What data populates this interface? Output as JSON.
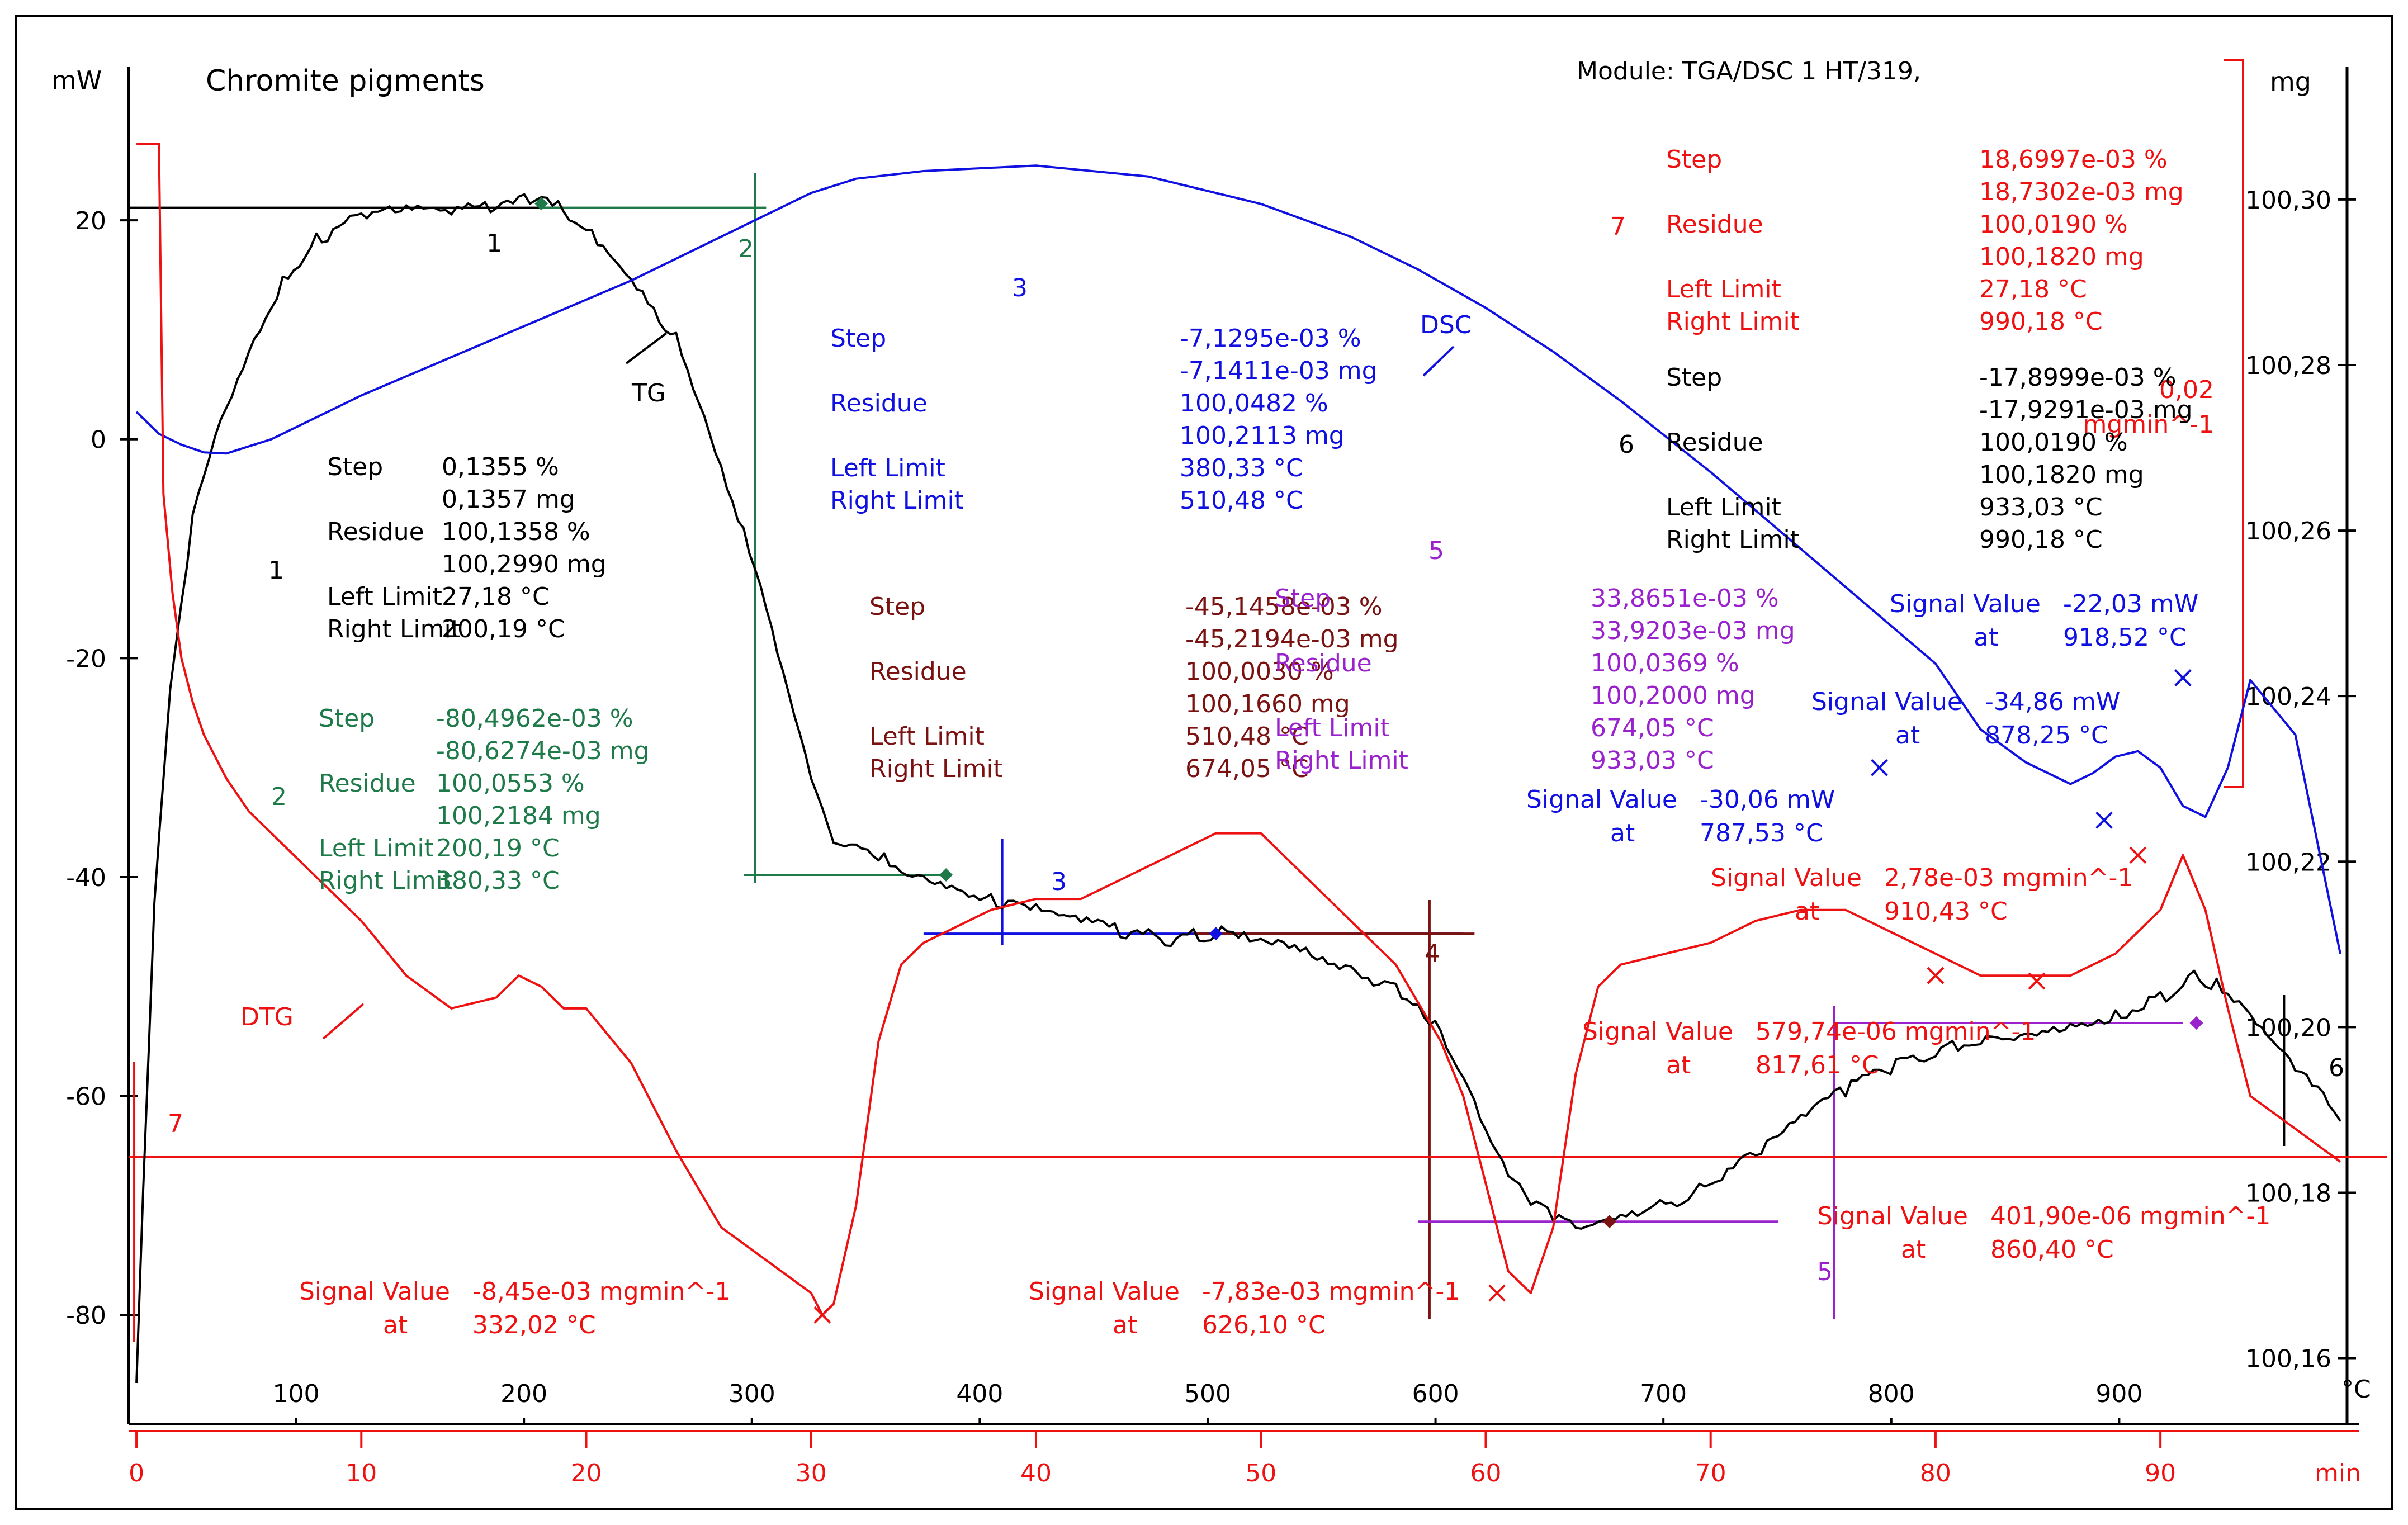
{
  "chart_data": {
    "type": "line",
    "title": "Chromite pigments",
    "module": "Module: TGA/DSC 1 HT/319,",
    "units": {
      "left": "mW",
      "right": "mg",
      "top_x": "°C",
      "bottom_x": "min"
    },
    "axes": {
      "mw_range": [
        -90,
        34
      ],
      "mg_range": [
        100.152,
        100.316
      ],
      "min_range": [
        -0.3,
        98.3
      ],
      "temp_range": [
        27,
        1000
      ],
      "mw_ticks": [
        "20",
        "0",
        "-20",
        "-40",
        "-60",
        "-80"
      ],
      "mw_tick_values": [
        20,
        0,
        -20,
        -40,
        -60,
        -80
      ],
      "mg_ticks": [
        "100,30",
        "100,28",
        "100,26",
        "100,24",
        "100,22",
        "100,20",
        "100,18",
        "100,16"
      ],
      "mg_tick_values": [
        100.3,
        100.28,
        100.26,
        100.24,
        100.22,
        100.2,
        100.18,
        100.16
      ],
      "temp_ticks": [
        "100",
        "200",
        "300",
        "400",
        "500",
        "600",
        "700",
        "800",
        "900"
      ],
      "temp_tick_values": [
        100,
        200,
        300,
        400,
        500,
        600,
        700,
        800,
        900
      ],
      "min_ticks": [
        "0",
        "10",
        "20",
        "30",
        "40",
        "50",
        "60",
        "70",
        "80",
        "90"
      ],
      "min_tick_values": [
        0,
        10,
        20,
        30,
        40,
        50,
        60,
        70,
        80,
        90
      ],
      "rate_scale_label": [
        "0,02",
        "mgmin^-1"
      ]
    },
    "colors": {
      "tg": "#000000",
      "dsc": "#1010e0",
      "dtg": "#ee1111",
      "step2": "#1f7a4a",
      "step3": "#1010e0",
      "step4": "#7a1212",
      "step5": "#9a22cc",
      "step6": "#000000",
      "step7": "#ee1111"
    },
    "series": [
      {
        "name": "TG",
        "axis": "mg",
        "color": "#000000",
        "x": [
          0,
          0.3,
          0.8,
          1.5,
          2.5,
          3.5,
          5,
          6.5,
          8,
          10,
          12,
          14,
          16,
          17.5,
          18.5,
          20,
          22,
          24,
          25,
          26,
          27,
          28,
          29,
          30,
          31,
          32,
          33,
          34,
          35,
          36,
          37,
          38,
          40,
          42,
          44,
          46,
          48,
          49,
          50,
          52,
          54,
          56,
          57,
          58,
          59,
          60,
          61,
          62,
          63,
          64,
          65,
          66,
          68,
          70,
          72,
          74,
          76,
          78,
          80,
          82,
          84,
          86,
          88,
          90,
          91.5,
          92.5,
          94,
          96,
          98
        ],
        "y": [
          100.157,
          100.18,
          100.215,
          100.24,
          100.262,
          100.272,
          100.282,
          100.29,
          100.295,
          100.298,
          100.2985,
          100.2985,
          100.299,
          100.3,
          100.2995,
          100.2965,
          100.291,
          100.283,
          100.276,
          100.268,
          100.26,
          100.25,
          100.24,
          100.23,
          100.222,
          100.2215,
          100.2205,
          100.2195,
          100.2185,
          100.2175,
          100.2165,
          100.2155,
          100.214,
          100.2125,
          100.2115,
          100.2105,
          100.2115,
          100.2112,
          100.2113,
          100.2095,
          100.207,
          100.2045,
          100.2025,
          100.199,
          100.1935,
          100.187,
          100.182,
          100.1785,
          100.1775,
          100.1765,
          100.1765,
          100.1775,
          100.1785,
          100.181,
          100.1845,
          100.1885,
          100.1925,
          100.195,
          100.197,
          100.1985,
          100.1995,
          100.2005,
          100.2015,
          100.2035,
          100.206,
          100.205,
          100.201,
          100.195,
          100.189
        ]
      },
      {
        "name": "DSC",
        "axis": "mW",
        "color": "#1010e0",
        "x": [
          0,
          1,
          2,
          3,
          4,
          6,
          8,
          10,
          14,
          18,
          22,
          25,
          28,
          30,
          32,
          35,
          40,
          45,
          50,
          54,
          57,
          60,
          63,
          66,
          70,
          74,
          78,
          80,
          82,
          84,
          86,
          87,
          88,
          89,
          90,
          91,
          92,
          93,
          94,
          96,
          98
        ],
        "y": [
          2.5,
          0.5,
          -0.5,
          -1.2,
          -1.3,
          0,
          2,
          4,
          7.5,
          11,
          14.5,
          17.5,
          20.5,
          22.5,
          23.8,
          24.5,
          25,
          24,
          21.5,
          18.5,
          15.5,
          12,
          8,
          3.5,
          -3,
          -10,
          -17,
          -20.5,
          -26.5,
          -29.5,
          -31.5,
          -30.5,
          -29,
          -28.5,
          -30,
          -33.5,
          -34.5,
          -30,
          -22,
          -27,
          -47
        ]
      },
      {
        "name": "DTG",
        "axis": "rate",
        "color": "#ee1111",
        "x": [
          0,
          1,
          1.2,
          1.6,
          2,
          2.5,
          3,
          4,
          5,
          6,
          8,
          10,
          12,
          14,
          16,
          17,
          18,
          19,
          20,
          22,
          24,
          26,
          28,
          30,
          30.5,
          31,
          32,
          33,
          34,
          35,
          36,
          38,
          40,
          42,
          44,
          46,
          48,
          50,
          52,
          54,
          56,
          58,
          59,
          60,
          61,
          62,
          63,
          64,
          65,
          66,
          68,
          70,
          72,
          74,
          76,
          78,
          80,
          82,
          84,
          86,
          88,
          90,
          91,
          92,
          93,
          94,
          96,
          98
        ],
        "y": [
          27,
          27,
          -5,
          -14,
          -20,
          -24,
          -27,
          -31,
          -34,
          -36,
          -40,
          -44,
          -49,
          -52,
          -51,
          -49,
          -50,
          -52,
          -52,
          -57,
          -65,
          -72,
          -75,
          -78,
          -80,
          -79,
          -70,
          -55,
          -48,
          -46,
          -45,
          -43,
          -42,
          -42,
          -40,
          -38,
          -36,
          -36,
          -40,
          -44,
          -48,
          -55,
          -60,
          -68,
          -76,
          -78,
          -72,
          -58,
          -50,
          -48,
          -47,
          -46,
          -44,
          -43,
          -43,
          -45,
          -47,
          -49,
          -49,
          -49,
          -47,
          -43,
          -38,
          -43,
          -52,
          -60,
          -63,
          -66
        ]
      }
    ],
    "labels": {
      "tg_curve": "TG",
      "dsc_curve": "DSC",
      "dtg_curve": "DTG",
      "peaks": [
        "1",
        "2",
        "3",
        "4",
        "5",
        "6",
        "7"
      ]
    },
    "step_info": {
      "step": "Step",
      "residue": "Residue",
      "left_limit": "Left Limit",
      "right_limit": "Right Limit",
      "signal_value": "Signal Value",
      "at": "at"
    },
    "steps": [
      {
        "id": "1",
        "color": "#000000",
        "step": "0,1355 %",
        "step_mg": "0,1357 mg",
        "residue": "100,1358 %",
        "residue_mg": "100,2990 mg",
        "left_limit": "27,18 °C",
        "right_limit": "200,19 °C"
      },
      {
        "id": "2",
        "color": "#1f7a4a",
        "step": "-80,4962e-03 %",
        "step_mg": "-80,6274e-03 mg",
        "residue": "100,0553 %",
        "residue_mg": "100,2184 mg",
        "left_limit": "200,19 °C",
        "right_limit": "380,33 °C"
      },
      {
        "id": "3",
        "color": "#1010e0",
        "step": "-7,1295e-03 %",
        "step_mg": "-7,1411e-03 mg",
        "residue": "100,0482 %",
        "residue_mg": "100,2113 mg",
        "left_limit": "380,33 °C",
        "right_limit": "510,48 °C"
      },
      {
        "id": "4",
        "color": "#7a1212",
        "step": "-45,1458e-03 %",
        "step_mg": "-45,2194e-03 mg",
        "residue": "100,0030 %",
        "residue_mg": "100,1660 mg",
        "left_limit": "510,48 °C",
        "right_limit": "674,05 °C"
      },
      {
        "id": "5",
        "color": "#9a22cc",
        "step": "33,8651e-03 %",
        "step_mg": "33,9203e-03 mg",
        "residue": "100,0369 %",
        "residue_mg": "100,2000 mg",
        "left_limit": "674,05 °C",
        "right_limit": "933,03 °C"
      },
      {
        "id": "6",
        "color": "#000000",
        "step": "-17,8999e-03 %",
        "step_mg": "-17,9291e-03 mg",
        "residue": "100,0190 %",
        "residue_mg": "100,1820 mg",
        "left_limit": "933,03 °C",
        "right_limit": "990,18 °C"
      },
      {
        "id": "7",
        "color": "#ee1111",
        "step": "18,6997e-03 %",
        "step_mg": "18,7302e-03 mg",
        "residue": "100,0190 %",
        "residue_mg": "100,1820 mg",
        "left_limit": "27,18 °C",
        "right_limit": "990,18 °C"
      }
    ],
    "signal_values": [
      {
        "curve": "DSC",
        "value": "-22,03 mW",
        "at": "918,52 °C",
        "x_min": 91,
        "y_val": -21.8
      },
      {
        "curve": "DSC",
        "value": "-34,86 mW",
        "at": "878,25 °C",
        "x_min": 87.5,
        "y_val": -34.8
      },
      {
        "curve": "DSC",
        "value": "-30,06 mW",
        "at": "787,53 °C",
        "x_min": 77.5,
        "y_val": -30
      },
      {
        "curve": "DTG",
        "value": "2,78e-03 mgmin^-1",
        "at": "910,43 °C",
        "x_min": 89,
        "y_val": -38
      },
      {
        "curve": "DTG",
        "value": "579,74e-06 mgmin^-1",
        "at": "817,61 °C",
        "x_min": 80,
        "y_val": -49
      },
      {
        "curve": "DTG",
        "value": "401,90e-06 mgmin^-1",
        "at": "860,40 °C",
        "x_min": 84.5,
        "y_val": -49.5
      },
      {
        "curve": "DTG",
        "value": "-8,45e-03 mgmin^-1",
        "at": "332,02 °C",
        "x_min": 30.5,
        "y_val": -80
      },
      {
        "curve": "DTG",
        "value": "-7,83e-03 mgmin^-1",
        "at": "626,10 °C",
        "x_min": 60.5,
        "y_val": -78
      }
    ]
  }
}
